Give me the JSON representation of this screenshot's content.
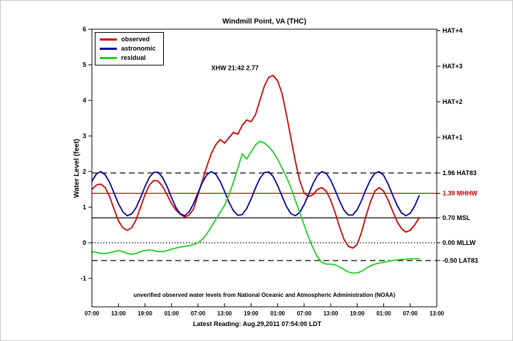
{
  "title": "Windmill Point, VA (THC)",
  "ylabel": "Water Level (feet)",
  "footer_note": "unverified observed water levels from National Oceanic and Atmospheric Administration (NOAA)",
  "latest_reading": "Latest Reading: Aug.29,2011 07:54:00 LDT",
  "annotation": {
    "text": "XHW 21:42 2.77",
    "t_hours": 27,
    "value": 4.85
  },
  "legend": [
    {
      "label": "observed",
      "color": "#cc0000"
    },
    {
      "label": "astronomic",
      "color": "#000099"
    },
    {
      "label": "residual",
      "color": "#22cc22"
    }
  ],
  "chart_data": {
    "type": "line",
    "xlim": [
      0,
      78
    ],
    "ylim": [
      -1.8,
      6
    ],
    "x_start": 0,
    "x_step": 1,
    "x_unit": "hours",
    "x_tick_interval": 6,
    "x_tick_labels": [
      "07:00",
      "13:00",
      "19:00",
      "01:00",
      "07:00",
      "13:00",
      "19:00",
      "01:00",
      "07:00",
      "13:00",
      "19:00",
      "01:00",
      "07:00",
      "13:00"
    ],
    "yticks": [
      -1,
      0,
      1,
      2,
      3,
      4,
      5,
      6
    ],
    "series": [
      {
        "name": "observed",
        "color": "#cc0000",
        "values": [
          1.5,
          1.62,
          1.65,
          1.55,
          1.3,
          0.95,
          0.62,
          0.42,
          0.35,
          0.42,
          0.65,
          1.0,
          1.35,
          1.62,
          1.75,
          1.73,
          1.58,
          1.35,
          1.1,
          0.92,
          0.8,
          0.72,
          0.78,
          0.95,
          1.35,
          1.75,
          2.15,
          2.5,
          2.75,
          2.9,
          2.8,
          2.95,
          3.1,
          3.05,
          3.3,
          3.45,
          3.4,
          3.6,
          4.0,
          4.4,
          4.65,
          4.7,
          4.55,
          4.2,
          3.6,
          2.95,
          2.3,
          1.75,
          1.4,
          1.3,
          1.35,
          1.5,
          1.55,
          1.45,
          1.2,
          0.85,
          0.45,
          0.1,
          -0.1,
          -0.15,
          -0.05,
          0.3,
          0.75,
          1.15,
          1.45,
          1.55,
          1.45,
          1.2,
          0.9,
          0.6,
          0.4,
          0.3,
          0.35,
          0.5,
          0.7
        ]
      },
      {
        "name": "astronomic",
        "color": "#000099",
        "values": [
          1.73,
          1.93,
          2.0,
          1.91,
          1.7,
          1.4,
          1.1,
          0.87,
          0.76,
          0.81,
          0.99,
          1.27,
          1.58,
          1.84,
          1.98,
          1.98,
          1.83,
          1.58,
          1.27,
          0.99,
          0.81,
          0.76,
          0.87,
          1.1,
          1.4,
          1.7,
          1.91,
          2.0,
          1.93,
          1.73,
          1.44,
          1.14,
          0.9,
          0.77,
          0.79,
          0.96,
          1.23,
          1.54,
          1.81,
          1.97,
          1.99,
          1.86,
          1.61,
          1.31,
          1.02,
          0.82,
          0.76,
          0.85,
          1.07,
          1.36,
          1.66,
          1.89,
          2.0,
          1.95,
          1.76,
          1.48,
          1.18,
          0.92,
          0.78,
          0.78,
          0.93,
          1.19,
          1.5,
          1.77,
          1.95,
          2.0,
          1.89,
          1.65,
          1.35,
          1.06,
          0.84,
          0.76,
          0.83,
          1.03,
          1.32
        ]
      },
      {
        "name": "residual",
        "color": "#22cc22",
        "values": [
          -0.25,
          -0.27,
          -0.3,
          -0.3,
          -0.28,
          -0.25,
          -0.22,
          -0.25,
          -0.3,
          -0.32,
          -0.3,
          -0.25,
          -0.22,
          -0.2,
          -0.22,
          -0.25,
          -0.25,
          -0.22,
          -0.18,
          -0.15,
          -0.12,
          -0.1,
          -0.08,
          -0.05,
          0.0,
          0.1,
          0.25,
          0.45,
          0.65,
          0.85,
          1.05,
          1.35,
          1.7,
          2.1,
          2.5,
          2.35,
          2.55,
          2.75,
          2.85,
          2.8,
          2.7,
          2.55,
          2.35,
          2.1,
          1.85,
          1.55,
          1.2,
          0.85,
          0.5,
          0.15,
          -0.15,
          -0.4,
          -0.55,
          -0.6,
          -0.6,
          -0.62,
          -0.68,
          -0.75,
          -0.82,
          -0.85,
          -0.85,
          -0.8,
          -0.72,
          -0.65,
          -0.6,
          -0.57,
          -0.55,
          -0.52,
          -0.5,
          -0.48,
          -0.47,
          -0.46,
          -0.45,
          -0.45,
          -0.45
        ]
      }
    ],
    "reference_lines": [
      {
        "value": 1.96,
        "label": "HAT83",
        "style": "dashed",
        "color": "#000000"
      },
      {
        "value": 1.39,
        "label": "MHHW",
        "style": "solid",
        "color": "#cc0000"
      },
      {
        "value": 0.7,
        "label": "MSL",
        "style": "solid",
        "color": "#000000"
      },
      {
        "value": 0.0,
        "label": "MLLW",
        "style": "dotted",
        "color": "#000000"
      },
      {
        "value": -0.5,
        "label": "LAT83",
        "style": "dashed",
        "color": "#000000"
      }
    ],
    "right_axis_labels": [
      {
        "value": 5.96,
        "label": "HAT+4",
        "color": "#000000"
      },
      {
        "value": 4.96,
        "label": "HAT+3",
        "color": "#000000"
      },
      {
        "value": 3.96,
        "label": "HAT+2",
        "color": "#000000"
      },
      {
        "value": 2.96,
        "label": "HAT+1",
        "color": "#000000"
      },
      {
        "value": 1.96,
        "label": "1.96 HAT83",
        "color": "#000000"
      },
      {
        "value": 1.39,
        "label": "1.39 MHHW",
        "color": "#cc0000"
      },
      {
        "value": 0.7,
        "label": "0.70 MSL",
        "color": "#000000"
      },
      {
        "value": 0.0,
        "label": "0.00 MLLW",
        "color": "#000000"
      },
      {
        "value": -0.5,
        "label": "-0.50 LAT83",
        "color": "#000000"
      }
    ]
  }
}
